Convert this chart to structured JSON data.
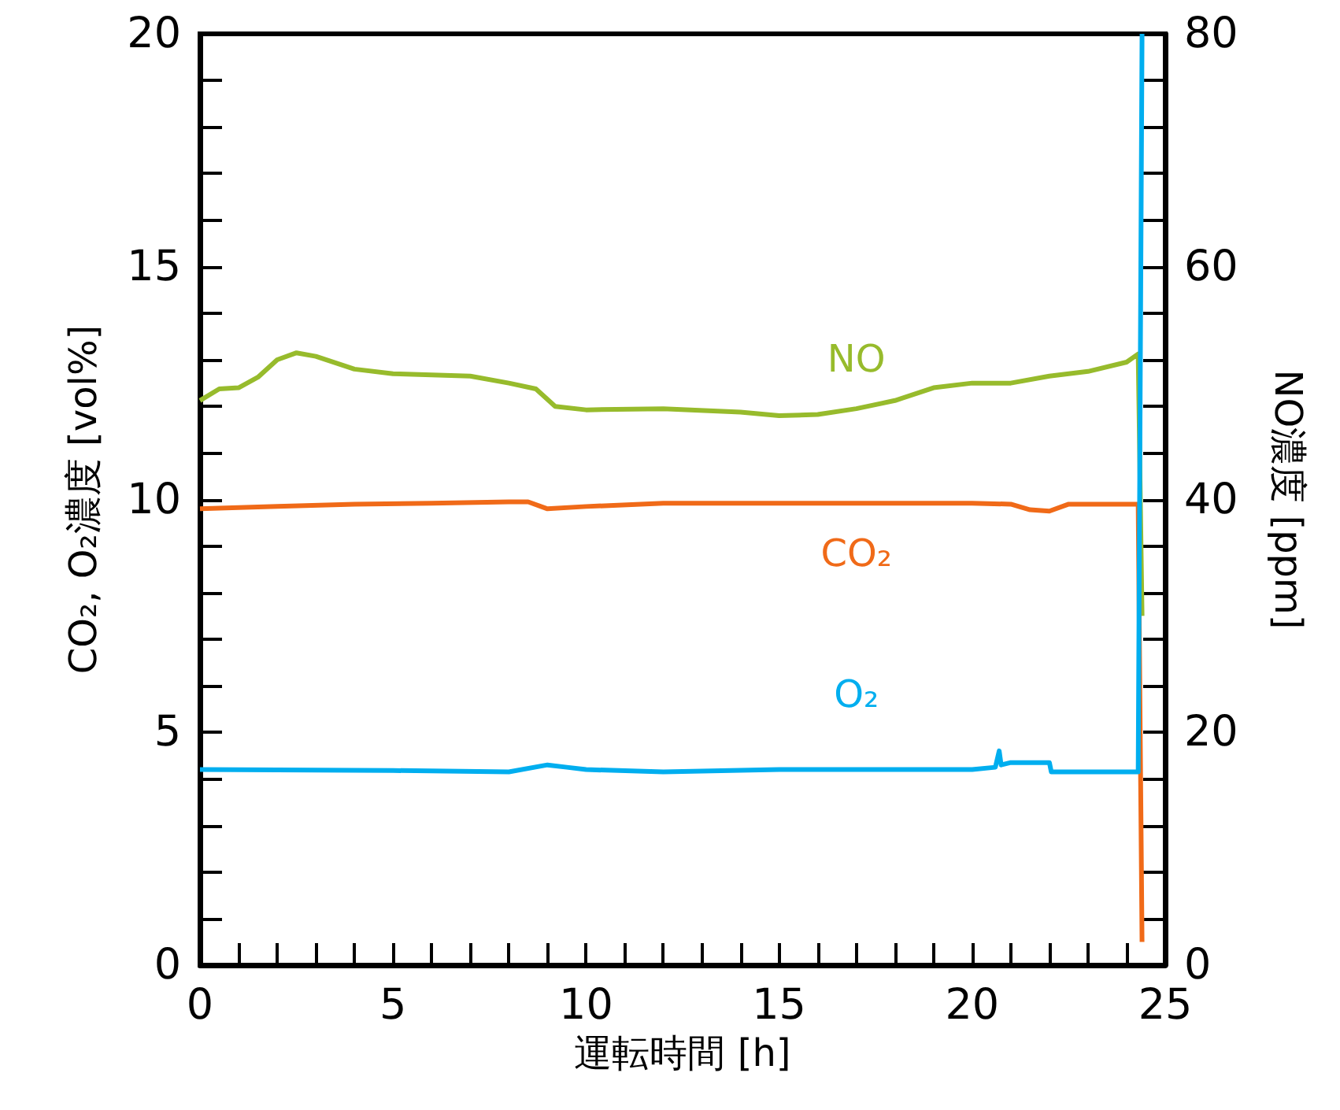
{
  "chart_data": {
    "type": "line",
    "xlabel": "運転時間 [h]",
    "ylabel": "CO₂, O₂濃度 [vol%]",
    "y2label": "NO濃度 [ppm]",
    "xlim": [
      0,
      25
    ],
    "xticks": [
      0,
      {
        "value": 1,
        "label": null
      },
      {
        "value": 2,
        "label": null
      },
      {
        "value": 3,
        "label": null
      },
      {
        "value": 4,
        "label": null
      },
      5,
      {
        "value": 6,
        "label": null
      },
      {
        "value": 7,
        "label": null
      },
      {
        "value": 8,
        "label": null
      },
      {
        "value": 9,
        "label": null
      },
      10,
      {
        "value": 11,
        "label": null
      },
      {
        "value": 12,
        "label": null
      },
      {
        "value": 13,
        "label": null
      },
      {
        "value": 14,
        "label": null
      },
      15,
      {
        "value": 16,
        "label": null
      },
      {
        "value": 17,
        "label": null
      },
      {
        "value": 18,
        "label": null
      },
      {
        "value": 19,
        "label": null
      },
      20,
      {
        "value": 21,
        "label": null
      },
      {
        "value": 22,
        "label": null
      },
      {
        "value": 23,
        "label": null
      },
      {
        "value": 24,
        "label": null
      },
      25
    ],
    "ylim": [
      0,
      20
    ],
    "yticks": [
      0,
      {
        "value": 1,
        "label": null
      },
      {
        "value": 2,
        "label": null
      },
      {
        "value": 3,
        "label": null
      },
      {
        "value": 4,
        "label": null
      },
      5,
      {
        "value": 6,
        "label": null
      },
      {
        "value": 7,
        "label": null
      },
      {
        "value": 8,
        "label": null
      },
      {
        "value": 9,
        "label": null
      },
      10,
      {
        "value": 11,
        "label": null
      },
      {
        "value": 12,
        "label": null
      },
      {
        "value": 13,
        "label": null
      },
      {
        "value": 14,
        "label": null
      },
      15,
      {
        "value": 16,
        "label": null
      },
      {
        "value": 17,
        "label": null
      },
      {
        "value": 18,
        "label": null
      },
      {
        "value": 19,
        "label": null
      },
      20
    ],
    "y2lim": [
      0,
      80
    ],
    "y2ticks": [
      0,
      {
        "value": 4,
        "label": null
      },
      {
        "value": 8,
        "label": null
      },
      {
        "value": 12,
        "label": null
      },
      {
        "value": 16,
        "label": null
      },
      20,
      {
        "value": 24,
        "label": null
      },
      {
        "value": 28,
        "label": null
      },
      {
        "value": 32,
        "label": null
      },
      {
        "value": 36,
        "label": null
      },
      40,
      {
        "value": 44,
        "label": null
      },
      {
        "value": 48,
        "label": null
      },
      {
        "value": 52,
        "label": null
      },
      {
        "value": 56,
        "label": null
      },
      60,
      {
        "value": 64,
        "label": null
      },
      {
        "value": 68,
        "label": null
      },
      {
        "value": 72,
        "label": null
      },
      {
        "value": 76,
        "label": null
      },
      80
    ],
    "marker": "none",
    "series": [
      {
        "name": "NO",
        "color": "#97bb2c",
        "axis": "y2",
        "x": [
          0,
          0.5,
          1,
          1.5,
          2,
          2.5,
          3,
          4,
          5,
          6,
          7,
          8,
          8.7,
          9.2,
          10,
          12,
          14,
          15,
          16,
          17,
          18,
          19,
          20,
          21,
          22,
          23,
          24,
          24.3,
          24.4
        ],
        "values": [
          48.5,
          49.5,
          49.6,
          50.5,
          52,
          52.6,
          52.3,
          51.2,
          50.8,
          50.7,
          50.6,
          50,
          49.5,
          48,
          47.7,
          47.8,
          47.5,
          47.2,
          47.3,
          47.8,
          48.5,
          49.6,
          50,
          50,
          50.6,
          51,
          51.8,
          52.5,
          30
        ]
      },
      {
        "name": "CO₂",
        "color": "#f06a18",
        "x": [
          0,
          2,
          4,
          6,
          8,
          8.5,
          9,
          10,
          12,
          15,
          18,
          20,
          21,
          21.5,
          22,
          22.5,
          24.3,
          24.4
        ],
        "values": [
          9.8,
          9.85,
          9.9,
          9.92,
          9.95,
          9.95,
          9.8,
          9.85,
          9.92,
          9.92,
          9.92,
          9.92,
          9.9,
          9.78,
          9.75,
          9.9,
          9.9,
          0.5
        ]
      },
      {
        "name": "O₂",
        "color": "#00aeef",
        "x": [
          0,
          5,
          8,
          9,
          9.5,
          10,
          12,
          15,
          18,
          20,
          20.6,
          20.7,
          20.75,
          21,
          22,
          22.05,
          24.3,
          24.4
        ],
        "values": [
          4.2,
          4.18,
          4.15,
          4.3,
          4.25,
          4.2,
          4.15,
          4.2,
          4.2,
          4.2,
          4.25,
          4.6,
          4.3,
          4.35,
          4.35,
          4.15,
          4.15,
          20
        ]
      }
    ]
  }
}
